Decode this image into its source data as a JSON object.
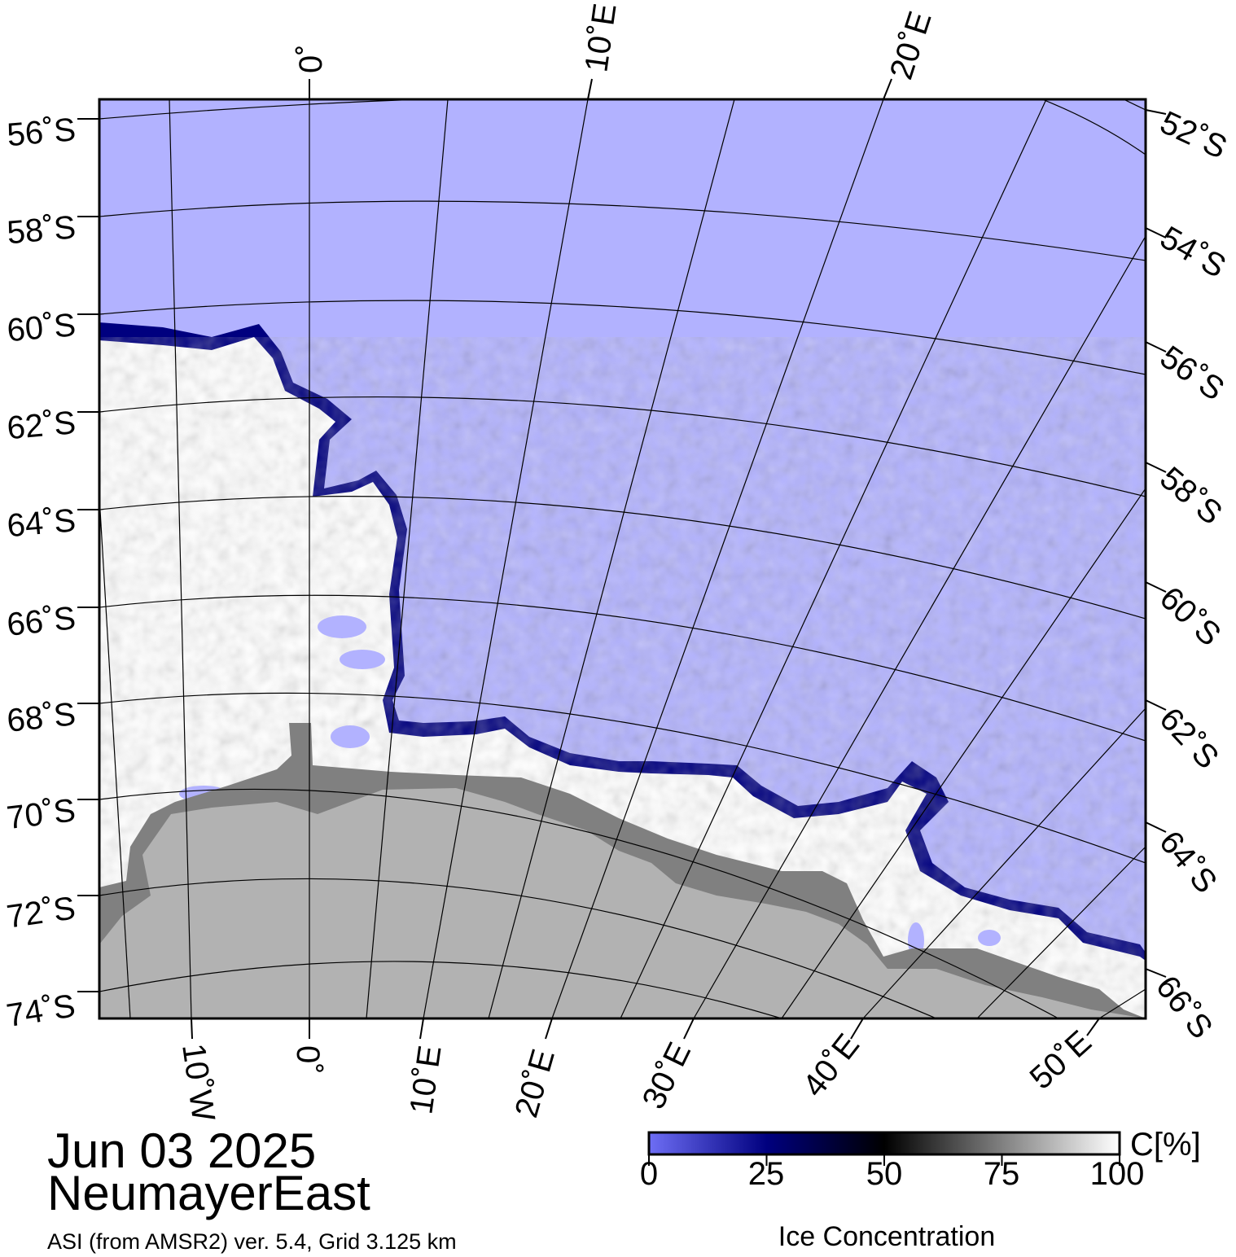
{
  "map": {
    "date": "Jun 03 2025",
    "region": "NeumayerEast",
    "source": "ASI (from AMSR2) ver. 5.4,  Grid 3.125 km",
    "colors": {
      "open_water": "#b2b2ff",
      "ice_edge": "#00007f",
      "ice_high": "#ffffff",
      "land": "#b2b2b2",
      "ice_shelf": "#808080",
      "graticule": "#000000"
    },
    "latitude_labels_left": [
      "56˚S",
      "58˚S",
      "60˚S",
      "62˚S",
      "64˚S",
      "66˚S",
      "68˚S",
      "70˚S",
      "72˚S",
      "74˚S"
    ],
    "latitude_labels_right": [
      "52˚S",
      "54˚S",
      "56˚S",
      "58˚S",
      "60˚S",
      "62˚S",
      "64˚S",
      "66˚S"
    ],
    "longitude_labels_top": [
      "0˚",
      "10˚E",
      "20˚E"
    ],
    "longitude_labels_bottom": [
      "10˚W",
      "0˚",
      "10˚E",
      "20˚E",
      "30˚E",
      "40˚E",
      "50˚E"
    ]
  },
  "colorbar": {
    "ticks": [
      "0",
      "25",
      "50",
      "75",
      "100"
    ],
    "unit": "C[%]",
    "label": "Ice Concentration",
    "stops": [
      "#6e6ef5",
      "#00007f",
      "#000000",
      "#808080",
      "#ffffff"
    ]
  }
}
